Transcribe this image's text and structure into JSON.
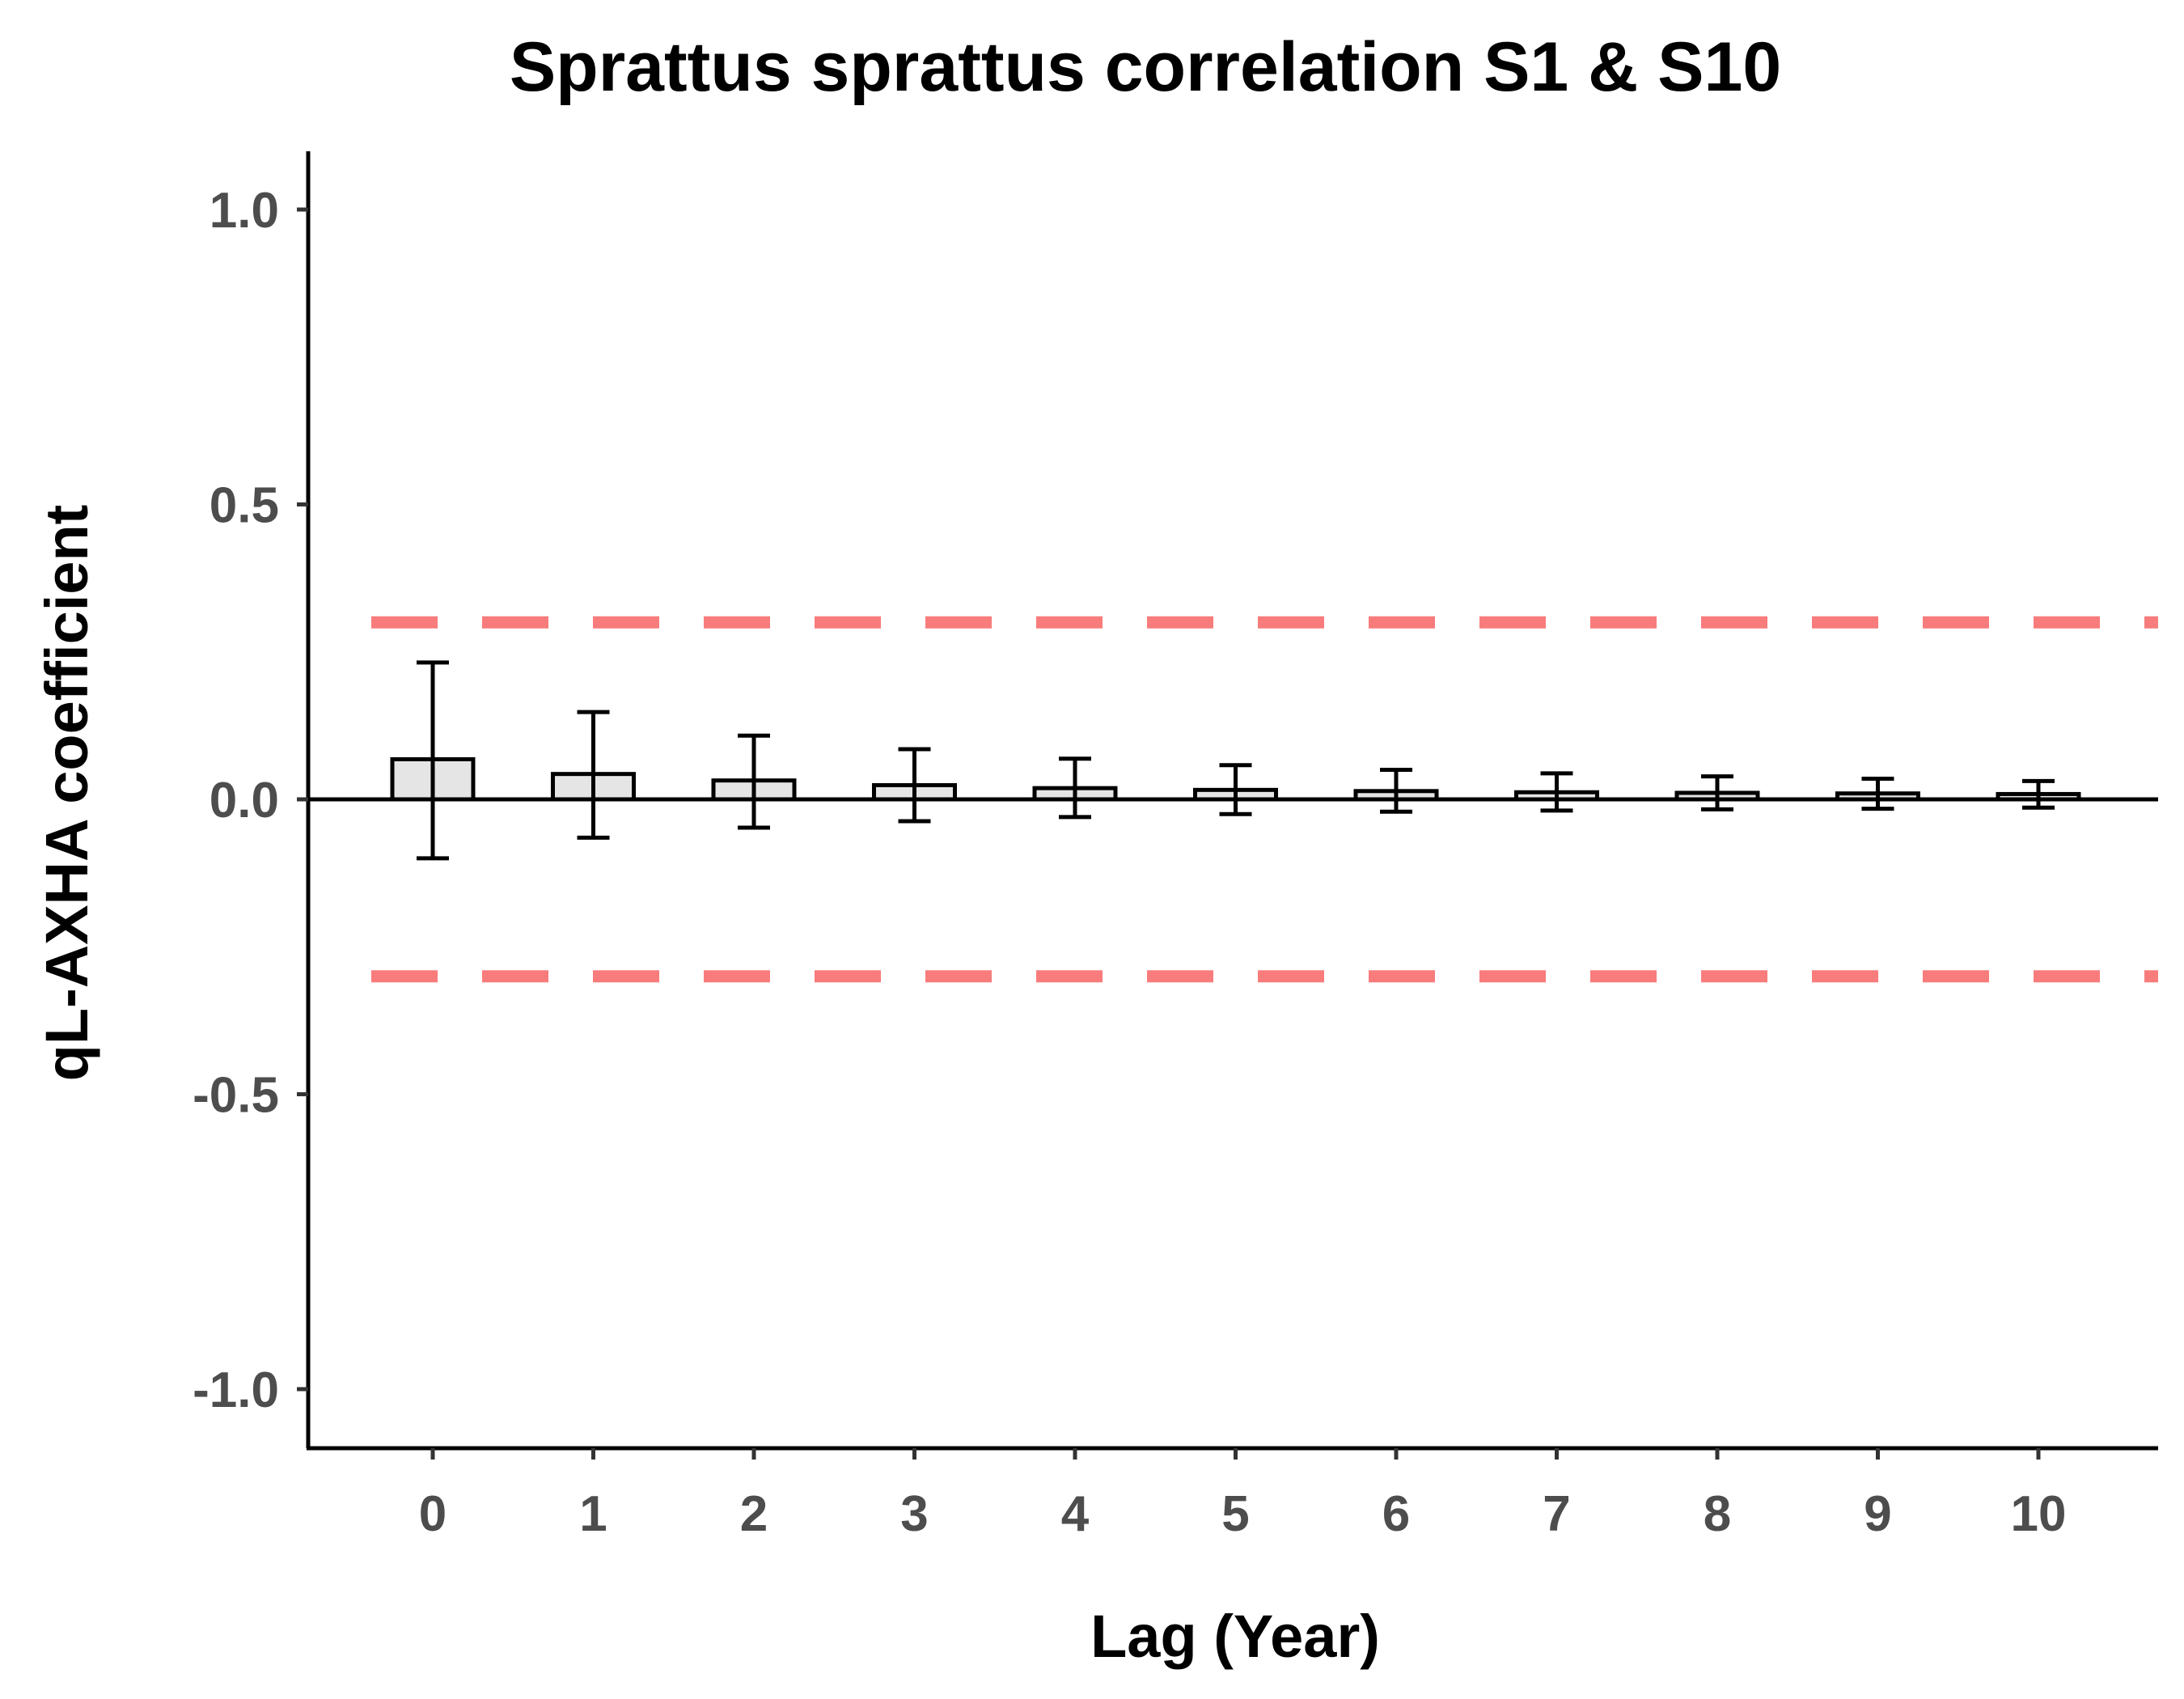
{
  "chart_data": {
    "type": "bar",
    "title": "Sprattus sprattus correlation S1 & S10",
    "xlabel": "Lag (Year)",
    "ylabel": "qL-AXHA coefficient",
    "categories": [
      "0",
      "1",
      "2",
      "3",
      "4",
      "5",
      "6",
      "7",
      "8",
      "9",
      "10"
    ],
    "values": [
      0.068,
      0.043,
      0.032,
      0.024,
      0.019,
      0.016,
      0.014,
      0.012,
      0.011,
      0.01,
      0.009
    ],
    "error_lower": [
      -0.1,
      -0.065,
      -0.048,
      -0.037,
      -0.03,
      -0.025,
      -0.021,
      -0.019,
      -0.017,
      -0.016,
      -0.014
    ],
    "error_upper": [
      0.232,
      0.148,
      0.108,
      0.085,
      0.069,
      0.058,
      0.05,
      0.044,
      0.039,
      0.035,
      0.031
    ],
    "threshold_lines": [
      0.3,
      -0.3
    ],
    "ylim": [
      -1.1,
      1.1
    ],
    "yticks": [
      1.0,
      0.5,
      0.0,
      -0.5,
      -1.0
    ],
    "ytick_labels": [
      "1.0",
      "0.5",
      "0.0",
      "-0.5",
      "-1.0"
    ],
    "grid": false,
    "colors": {
      "bar_fill": "#e5e5e5",
      "bar_stroke": "#000000",
      "threshold": "#f87c7c",
      "axis": "#000000",
      "tick_text": "#4d4d4d"
    }
  }
}
